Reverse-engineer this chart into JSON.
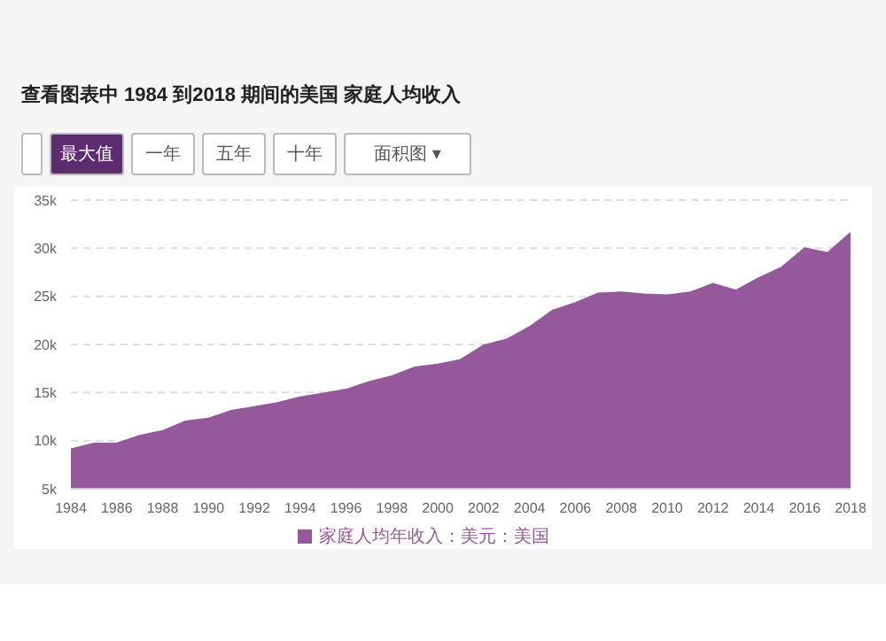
{
  "chart_data": {
    "type": "area",
    "title": "查看图表中 1984 到2018 期间的美国 家庭人均收入",
    "annotations": [
      "最大值",
      "一年",
      "五年",
      "十年",
      "面积图 ▾"
    ],
    "x": [
      1984,
      1985,
      1986,
      1987,
      1988,
      1989,
      1990,
      1991,
      1992,
      1993,
      1994,
      1995,
      1996,
      1997,
      1998,
      1999,
      2000,
      2001,
      2002,
      2003,
      2004,
      2005,
      2006,
      2007,
      2008,
      2009,
      2010,
      2011,
      2012,
      2013,
      2014,
      2015,
      2016,
      2017,
      2018
    ],
    "series": [
      {
        "name": "家庭人均年收入：美元：美国",
        "color": "#94589b",
        "values": [
          9.1,
          9.7,
          9.7,
          10.5,
          11.0,
          12.0,
          12.3,
          13.1,
          13.5,
          13.9,
          14.5,
          14.9,
          15.3,
          16.1,
          16.7,
          17.6,
          17.9,
          18.4,
          19.9,
          20.5,
          21.8,
          23.5,
          24.3,
          25.3,
          25.4,
          25.2,
          25.1,
          25.4,
          26.3,
          25.6,
          26.9,
          28.0,
          30.0,
          29.5,
          31.6
        ]
      }
    ],
    "xlim": [
      1984,
      2018
    ],
    "xticks": [
      1984,
      1986,
      1988,
      1990,
      1992,
      1994,
      1996,
      1998,
      2000,
      2002,
      2004,
      2006,
      2008,
      2010,
      2012,
      2014,
      2016,
      2018
    ],
    "ylim": [
      5,
      35
    ],
    "yticks": [
      {
        "value": 5,
        "label": "5k"
      },
      {
        "value": 10,
        "label": "10k"
      },
      {
        "value": 15,
        "label": "15k"
      },
      {
        "value": 20,
        "label": "20k"
      },
      {
        "value": 25,
        "label": "25k"
      },
      {
        "value": 30,
        "label": "30k"
      },
      {
        "value": 35,
        "label": "35k"
      }
    ],
    "grid": "y",
    "legend": "bottom"
  }
}
